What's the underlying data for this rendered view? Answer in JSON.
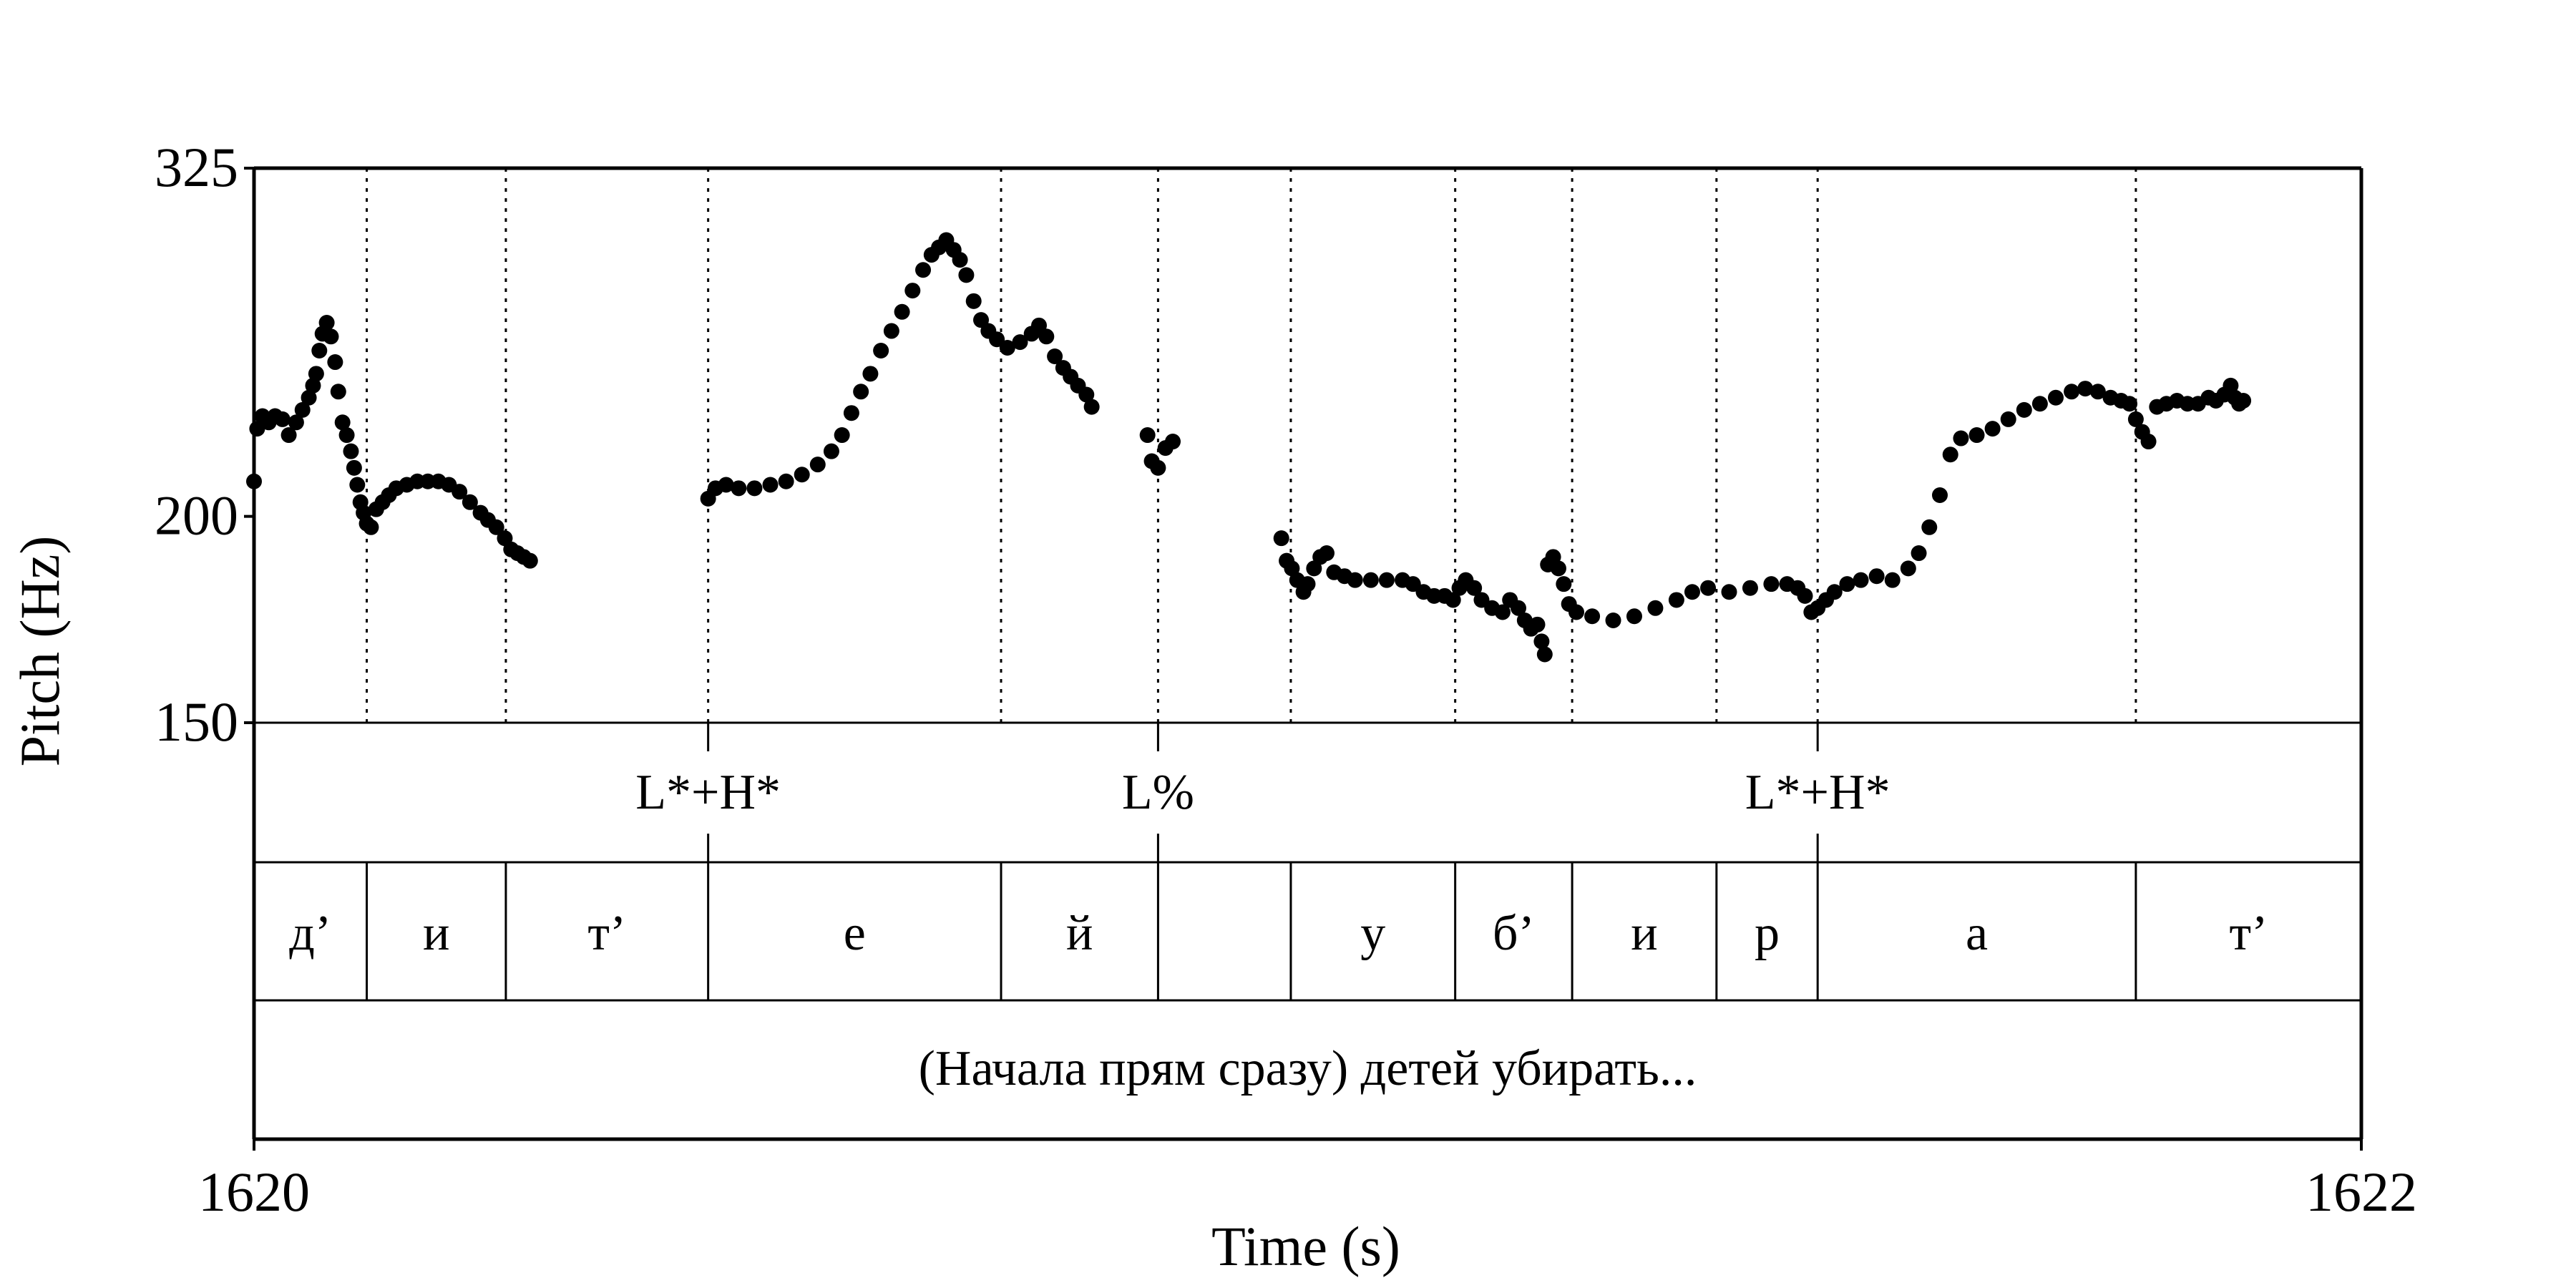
{
  "chart_data": {
    "type": "scatter",
    "title": "",
    "xlabel": "Time (s)",
    "ylabel": "Pitch (Hz)",
    "xlim": [
      1620,
      1622
    ],
    "ylim": [
      150,
      325
    ],
    "log_y": true,
    "x_ticks": [
      "1620",
      "1622"
    ],
    "y_ticks": [
      "150",
      "200",
      "325"
    ],
    "point_color": "#000000",
    "tones_tier": [
      {
        "label": "L*+H*",
        "time": 1620.431
      },
      {
        "label": "L%",
        "time": 1620.858
      },
      {
        "label": "L*+H*",
        "time": 1621.484
      }
    ],
    "segments_tier": [
      {
        "label": "д’",
        "start": 1620.0,
        "end": 1620.107
      },
      {
        "label": "и",
        "start": 1620.107,
        "end": 1620.239
      },
      {
        "label": "т’",
        "start": 1620.239,
        "end": 1620.431
      },
      {
        "label": "е",
        "start": 1620.431,
        "end": 1620.709
      },
      {
        "label": "й",
        "start": 1620.709,
        "end": 1620.858
      },
      {
        "label": "",
        "start": 1620.858,
        "end": 1620.984
      },
      {
        "label": "у",
        "start": 1620.984,
        "end": 1621.14
      },
      {
        "label": "б’",
        "start": 1621.14,
        "end": 1621.251
      },
      {
        "label": "и",
        "start": 1621.251,
        "end": 1621.388
      },
      {
        "label": "р",
        "start": 1621.388,
        "end": 1621.484
      },
      {
        "label": "а",
        "start": 1621.484,
        "end": 1621.786
      },
      {
        "label": "т’",
        "start": 1621.786,
        "end": 1622.0
      }
    ],
    "sentence_tier": "(Начала прям сразу) детей убирать...",
    "pitch_segments": [
      [
        [
          1620.0,
          210
        ],
        [
          1620.003,
          226
        ],
        [
          1620.008,
          230
        ],
        [
          1620.014,
          228
        ],
        [
          1620.02,
          230
        ],
        [
          1620.027,
          229
        ],
        [
          1620.033,
          224
        ],
        [
          1620.04,
          228
        ],
        [
          1620.046,
          232
        ],
        [
          1620.052,
          236
        ],
        [
          1620.056,
          240
        ],
        [
          1620.059,
          244
        ],
        [
          1620.062,
          252
        ],
        [
          1620.065,
          258
        ],
        [
          1620.069,
          262
        ],
        [
          1620.073,
          257
        ],
        [
          1620.077,
          248
        ],
        [
          1620.08,
          238
        ],
        [
          1620.084,
          228
        ],
        [
          1620.088,
          224
        ],
        [
          1620.092,
          219
        ],
        [
          1620.095,
          214
        ],
        [
          1620.098,
          209
        ],
        [
          1620.101,
          204
        ],
        [
          1620.104,
          201
        ],
        [
          1620.107,
          198
        ],
        [
          1620.111,
          197
        ],
        [
          1620.116,
          202
        ],
        [
          1620.122,
          204
        ],
        [
          1620.128,
          206
        ],
        [
          1620.135,
          208
        ],
        [
          1620.145,
          209
        ],
        [
          1620.155,
          210
        ],
        [
          1620.165,
          210
        ],
        [
          1620.175,
          210
        ],
        [
          1620.185,
          209
        ],
        [
          1620.195,
          207
        ],
        [
          1620.205,
          204
        ],
        [
          1620.215,
          201
        ],
        [
          1620.222,
          199
        ],
        [
          1620.23,
          197
        ],
        [
          1620.238,
          194
        ],
        [
          1620.244,
          191
        ],
        [
          1620.25,
          190
        ],
        [
          1620.256,
          189
        ],
        [
          1620.262,
          188
        ]
      ],
      [
        [
          1620.431,
          205
        ],
        [
          1620.438,
          208
        ],
        [
          1620.448,
          209
        ],
        [
          1620.46,
          208
        ],
        [
          1620.475,
          208
        ],
        [
          1620.49,
          209
        ],
        [
          1620.505,
          210
        ],
        [
          1620.52,
          212
        ],
        [
          1620.535,
          215
        ],
        [
          1620.548,
          219
        ],
        [
          1620.558,
          224
        ],
        [
          1620.567,
          231
        ],
        [
          1620.576,
          238
        ],
        [
          1620.585,
          244
        ],
        [
          1620.595,
          252
        ],
        [
          1620.605,
          259
        ],
        [
          1620.615,
          266
        ],
        [
          1620.625,
          274
        ],
        [
          1620.635,
          282
        ],
        [
          1620.643,
          288
        ],
        [
          1620.65,
          291
        ],
        [
          1620.657,
          294
        ],
        [
          1620.664,
          290
        ],
        [
          1620.67,
          286
        ],
        [
          1620.676,
          280
        ],
        [
          1620.683,
          270
        ],
        [
          1620.69,
          263
        ],
        [
          1620.697,
          259
        ],
        [
          1620.705,
          256
        ],
        [
          1620.715,
          253
        ],
        [
          1620.727,
          255
        ],
        [
          1620.738,
          258
        ],
        [
          1620.745,
          261
        ],
        [
          1620.752,
          257
        ],
        [
          1620.76,
          250
        ],
        [
          1620.768,
          246
        ],
        [
          1620.775,
          243
        ],
        [
          1620.782,
          240
        ],
        [
          1620.79,
          237
        ],
        [
          1620.795,
          233
        ],
        [
          1620.848,
          224
        ],
        [
          1620.852,
          216
        ],
        [
          1620.858,
          214
        ],
        [
          1620.865,
          220
        ],
        [
          1620.872,
          222
        ]
      ],
      [
        [
          1620.975,
          194
        ],
        [
          1620.98,
          188
        ],
        [
          1620.985,
          186
        ],
        [
          1620.99,
          183
        ],
        [
          1620.996,
          180
        ],
        [
          1621.0,
          182
        ],
        [
          1621.006,
          186
        ],
        [
          1621.012,
          189
        ],
        [
          1621.018,
          190
        ],
        [
          1621.025,
          185
        ],
        [
          1621.035,
          184
        ],
        [
          1621.045,
          183
        ],
        [
          1621.06,
          183
        ],
        [
          1621.075,
          183
        ],
        [
          1621.09,
          183
        ],
        [
          1621.1,
          182
        ],
        [
          1621.11,
          180
        ],
        [
          1621.12,
          179
        ],
        [
          1621.13,
          179
        ],
        [
          1621.138,
          178
        ],
        [
          1621.144,
          181
        ],
        [
          1621.15,
          183
        ],
        [
          1621.158,
          181
        ],
        [
          1621.165,
          178
        ],
        [
          1621.175,
          176
        ],
        [
          1621.185,
          175
        ],
        [
          1621.192,
          178
        ],
        [
          1621.2,
          176
        ],
        [
          1621.206,
          173
        ],
        [
          1621.212,
          171
        ],
        [
          1621.218,
          172
        ],
        [
          1621.222,
          168
        ],
        [
          1621.225,
          165
        ],
        [
          1621.228,
          187
        ],
        [
          1621.233,
          189
        ],
        [
          1621.238,
          186
        ],
        [
          1621.243,
          182
        ],
        [
          1621.248,
          177
        ],
        [
          1621.255,
          175
        ],
        [
          1621.27,
          174
        ],
        [
          1621.29,
          173
        ],
        [
          1621.31,
          174
        ],
        [
          1621.33,
          176
        ],
        [
          1621.35,
          178
        ],
        [
          1621.365,
          180
        ],
        [
          1621.38,
          181
        ],
        [
          1621.4,
          180
        ],
        [
          1621.42,
          181
        ],
        [
          1621.44,
          182
        ],
        [
          1621.455,
          182
        ],
        [
          1621.465,
          181
        ],
        [
          1621.472,
          179
        ],
        [
          1621.478,
          175
        ],
        [
          1621.484,
          176
        ],
        [
          1621.492,
          178
        ],
        [
          1621.5,
          180
        ],
        [
          1621.512,
          182
        ],
        [
          1621.525,
          183
        ],
        [
          1621.54,
          184
        ],
        [
          1621.555,
          183
        ],
        [
          1621.57,
          186
        ],
        [
          1621.58,
          190
        ],
        [
          1621.59,
          197
        ],
        [
          1621.6,
          206
        ],
        [
          1621.61,
          218
        ],
        [
          1621.62,
          223
        ],
        [
          1621.635,
          224
        ],
        [
          1621.65,
          226
        ],
        [
          1621.665,
          229
        ],
        [
          1621.68,
          232
        ],
        [
          1621.695,
          234
        ],
        [
          1621.71,
          236
        ],
        [
          1621.725,
          238
        ],
        [
          1621.738,
          239
        ],
        [
          1621.75,
          238
        ],
        [
          1621.762,
          236
        ],
        [
          1621.772,
          235
        ],
        [
          1621.78,
          234
        ],
        [
          1621.786,
          229
        ],
        [
          1621.792,
          225
        ],
        [
          1621.798,
          222
        ],
        [
          1621.806,
          233
        ],
        [
          1621.815,
          234
        ],
        [
          1621.825,
          235
        ],
        [
          1621.835,
          234
        ],
        [
          1621.845,
          234
        ],
        [
          1621.855,
          236
        ],
        [
          1621.862,
          235
        ],
        [
          1621.87,
          237
        ],
        [
          1621.876,
          240
        ],
        [
          1621.88,
          236
        ],
        [
          1621.884,
          234
        ],
        [
          1621.888,
          235
        ]
      ]
    ]
  }
}
